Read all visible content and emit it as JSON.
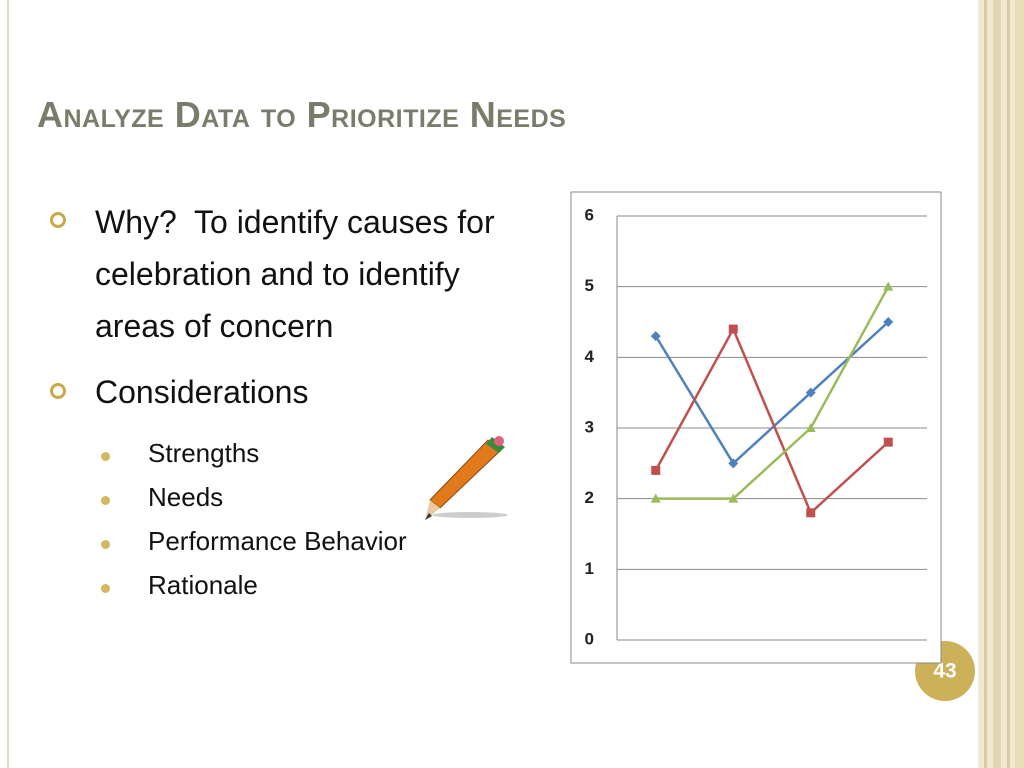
{
  "title": "Analyze Data to Prioritize Needs",
  "bullets": [
    {
      "text": "Why?  To identify causes for celebration and to identify areas of concern"
    },
    {
      "text": "Considerations",
      "sub": [
        "Strengths",
        "Needs",
        "Performance Behavior",
        "Rationale"
      ]
    }
  ],
  "slide_number": "43",
  "chart_data": {
    "type": "line",
    "categories": [
      null,
      null,
      null,
      null
    ],
    "series": [
      {
        "color": "#4f81bd",
        "marker": "diamond",
        "values": [
          4.3,
          2.5,
          3.5,
          4.5
        ]
      },
      {
        "color": "#c0504d",
        "marker": "square",
        "values": [
          2.4,
          4.4,
          1.8,
          2.8
        ]
      },
      {
        "color": "#9bbb59",
        "marker": "triangle",
        "values": [
          2,
          2,
          3,
          5
        ]
      }
    ],
    "ylim": [
      0,
      6
    ],
    "yticks": [
      0,
      1,
      2,
      3,
      4,
      5,
      6
    ],
    "grid": true
  }
}
